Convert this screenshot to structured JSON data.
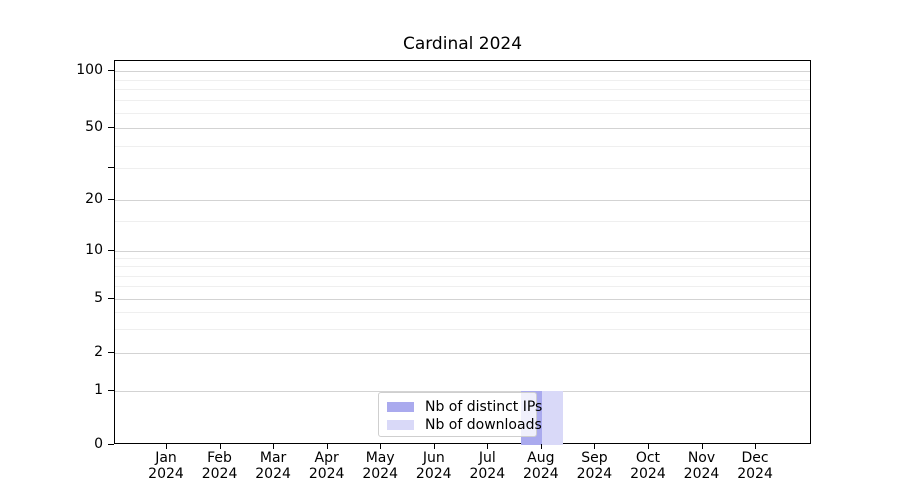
{
  "chart_data": {
    "type": "bar",
    "title": "Cardinal 2024",
    "x_categories": [
      {
        "month": "Jan",
        "year": "2024"
      },
      {
        "month": "Feb",
        "year": "2024"
      },
      {
        "month": "Mar",
        "year": "2024"
      },
      {
        "month": "Apr",
        "year": "2024"
      },
      {
        "month": "May",
        "year": "2024"
      },
      {
        "month": "Jun",
        "year": "2024"
      },
      {
        "month": "Jul",
        "year": "2024"
      },
      {
        "month": "Aug",
        "year": "2024"
      },
      {
        "month": "Sep",
        "year": "2024"
      },
      {
        "month": "Oct",
        "year": "2024"
      },
      {
        "month": "Nov",
        "year": "2024"
      },
      {
        "month": "Dec",
        "year": "2024"
      }
    ],
    "series": [
      {
        "name": "Nb of distinct IPs",
        "color": "#aaaaee",
        "values": [
          0,
          0,
          0,
          0,
          0,
          0,
          0,
          1,
          0,
          0,
          0,
          0
        ]
      },
      {
        "name": "Nb of downloads",
        "color": "#d9d9f8",
        "values": [
          0,
          0,
          0,
          0,
          0,
          0,
          0,
          1,
          0,
          0,
          0,
          0
        ]
      }
    ],
    "y_axis": {
      "scale": "log-like with 0 baseline",
      "range": [
        0,
        100
      ],
      "ticks": [
        {
          "value": 0,
          "label": "0"
        },
        {
          "value": 1,
          "label": "1"
        },
        {
          "value": 2,
          "label": "2"
        },
        {
          "value": 5,
          "label": "5"
        },
        {
          "value": 10,
          "label": "10"
        },
        {
          "value": 20,
          "label": "20"
        },
        {
          "value": 30,
          "label": ""
        },
        {
          "value": 50,
          "label": "50"
        },
        {
          "value": 100,
          "label": "100"
        }
      ],
      "minor_gridlines": [
        3,
        4,
        6,
        7,
        8,
        9,
        15,
        30,
        40,
        60,
        70,
        80,
        90
      ]
    },
    "grid": {
      "major_color": "#d3d3d3",
      "minor_color": "#efefef"
    },
    "legend": {
      "position": "bottom-center"
    }
  }
}
